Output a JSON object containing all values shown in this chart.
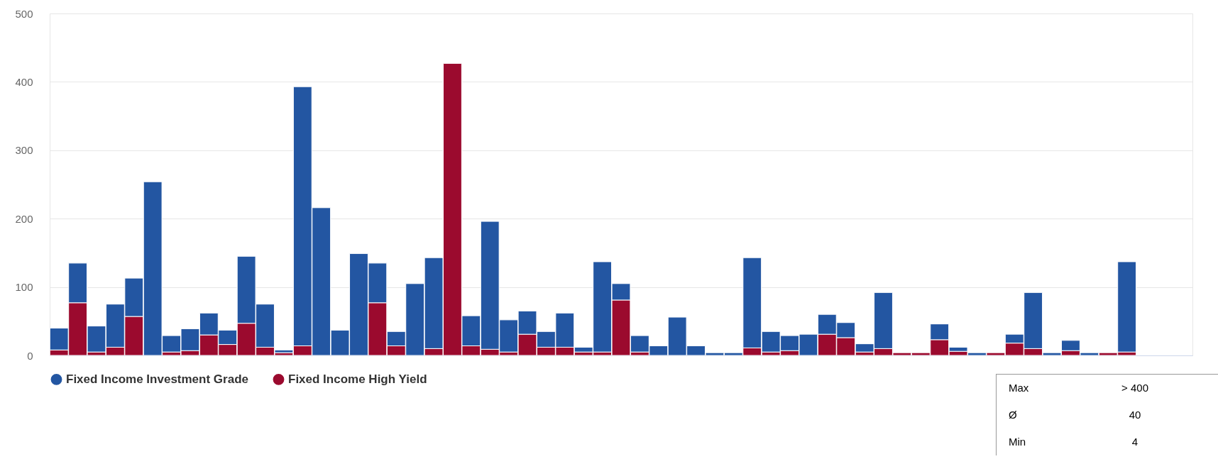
{
  "chart_data": {
    "type": "bar",
    "stacked": true,
    "legend": "bottom",
    "grid": "y",
    "ylim": [
      0,
      500
    ],
    "yticks": [
      0,
      100,
      200,
      300,
      400,
      500
    ],
    "categories": [
      null,
      null,
      null,
      null,
      null,
      null,
      null,
      null,
      null,
      null,
      null,
      null,
      null,
      null,
      null,
      null,
      null,
      null,
      null,
      null,
      null,
      null,
      null,
      null,
      null,
      null,
      null,
      null,
      null,
      null,
      null,
      null,
      null,
      null,
      null,
      null,
      null,
      null,
      null,
      null,
      null,
      null,
      null,
      null,
      null,
      null,
      null,
      null,
      null,
      null,
      null,
      null,
      null,
      null,
      null,
      null,
      null,
      null,
      null,
      null,
      null
    ],
    "series": [
      {
        "name": "Fixed Income High Yield",
        "color": "#9b0a2e",
        "values": [
          8,
          77,
          5,
          12,
          57,
          null,
          5,
          7,
          30,
          16,
          47,
          12,
          4,
          14,
          null,
          null,
          null,
          77,
          14,
          null,
          10,
          427,
          14,
          9,
          5,
          31,
          12,
          12,
          5,
          5,
          81,
          5,
          null,
          null,
          null,
          null,
          null,
          11,
          5,
          7,
          null,
          31,
          26,
          5,
          10,
          4,
          4,
          23,
          6,
          null,
          4,
          18,
          10,
          null,
          7,
          null,
          4,
          5,
          null,
          null,
          null
        ]
      },
      {
        "name": "Fixed Income Investment Grade",
        "color": "#2356a2",
        "values": [
          32,
          58,
          38,
          63,
          56,
          254,
          24,
          32,
          32,
          21,
          98,
          63,
          4,
          379,
          216,
          37,
          149,
          58,
          21,
          105,
          133,
          null,
          44,
          187,
          47,
          34,
          23,
          50,
          7,
          132,
          24,
          24,
          14,
          56,
          14,
          4,
          4,
          132,
          30,
          22,
          31,
          29,
          22,
          12,
          82,
          null,
          null,
          23,
          6,
          4,
          null,
          13,
          82,
          4,
          15,
          4,
          null,
          132,
          null,
          null,
          null
        ]
      }
    ],
    "annotations": [
      "Max",
      "> 400",
      "Ø",
      "40",
      "Min",
      "4"
    ]
  }
}
